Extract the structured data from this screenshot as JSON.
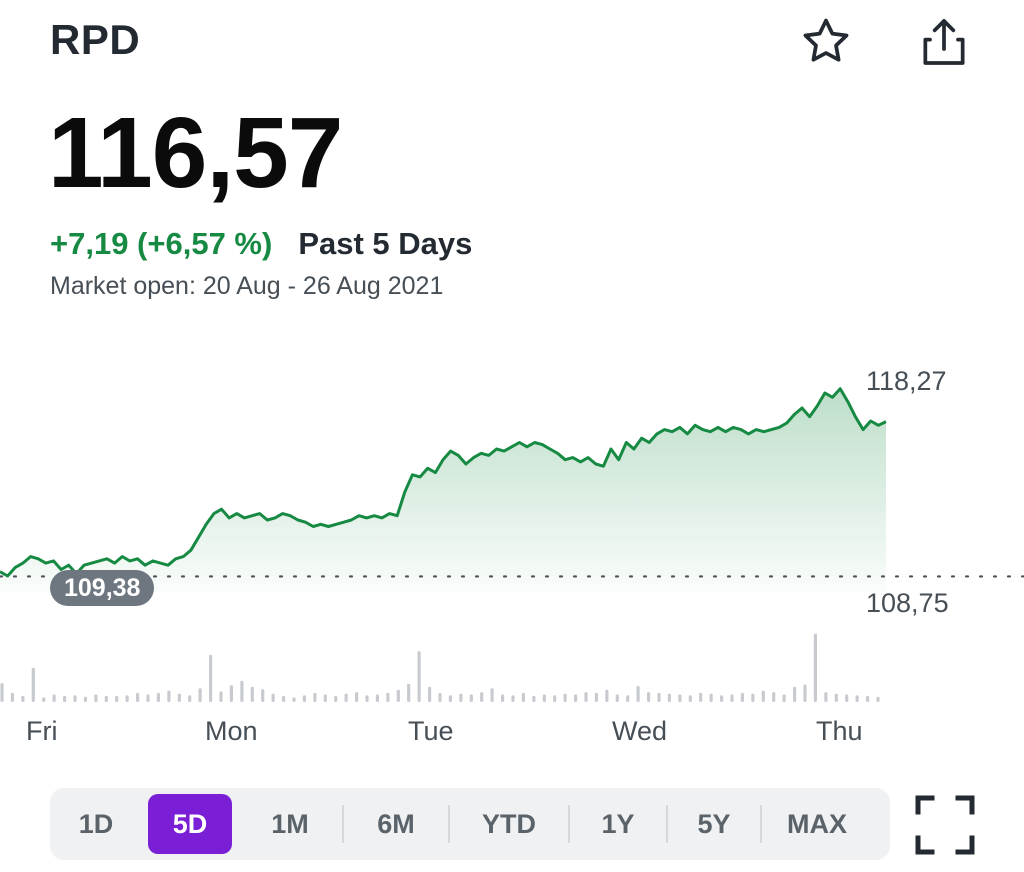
{
  "header": {
    "ticker": "RPD",
    "star_icon": "star-icon",
    "share_icon": "share-icon"
  },
  "quote": {
    "price": "116,57",
    "change": "+7,19 (+6,57 %)",
    "period": "Past 5 Days",
    "market_status": "Market open: 20 Aug - 26 Aug 2021"
  },
  "colors": {
    "accent_green": "#168a42",
    "line_green": "#168a42",
    "active_range": "#7b1fd6"
  },
  "chart_data": {
    "type": "area",
    "x_tick_labels": [
      "Fri",
      "Mon",
      "Tue",
      "Wed",
      "Thu"
    ],
    "high_label": "118,27",
    "low_label": "108,75",
    "previous_close_label": "109,38",
    "previous_close": 109.38,
    "ylim": [
      108.75,
      118.27
    ],
    "series": [
      {
        "values": [
          109.6,
          109.4,
          109.8,
          110.0,
          110.3,
          110.2,
          110.0,
          110.1,
          109.7,
          109.9,
          109.5,
          109.9,
          110.0,
          110.1,
          110.2,
          110.0,
          110.3,
          110.1,
          110.2,
          109.9,
          110.1,
          110.0,
          109.9,
          110.2,
          110.3,
          110.6,
          111.2,
          111.8,
          112.3,
          112.5,
          112.1,
          112.3,
          112.1,
          112.2,
          112.3,
          112.0,
          112.1,
          112.3,
          112.2,
          112.0,
          111.9,
          111.7,
          111.8,
          111.7,
          111.8,
          111.9,
          112.0,
          112.2,
          112.1,
          112.2,
          112.1,
          112.3,
          112.2,
          113.3,
          114.1,
          114.0,
          114.4,
          114.2,
          114.8,
          115.2,
          115.0,
          114.6,
          114.9,
          115.1,
          115.0,
          115.3,
          115.2,
          115.4,
          115.6,
          115.4,
          115.6,
          115.5,
          115.3,
          115.1,
          114.8,
          114.9,
          114.7,
          114.9,
          114.6,
          114.5,
          115.3,
          114.8,
          115.6,
          115.3,
          115.8,
          115.6,
          116.0,
          116.2,
          116.1,
          116.3,
          116.0,
          116.4,
          116.2,
          116.1,
          116.3,
          116.1,
          116.3,
          116.2,
          116.0,
          116.2,
          116.1,
          116.2,
          116.3,
          116.5,
          116.9,
          117.2,
          116.8,
          117.3,
          117.9,
          117.7,
          118.1,
          117.5,
          116.8,
          116.2,
          116.6,
          116.4,
          116.57
        ]
      }
    ],
    "volume": [
      0.25,
      0.12,
      0.08,
      0.45,
      0.06,
      0.1,
      0.08,
      0.09,
      0.07,
      0.1,
      0.08,
      0.08,
      0.09,
      0.12,
      0.1,
      0.12,
      0.15,
      0.11,
      0.09,
      0.18,
      0.62,
      0.14,
      0.22,
      0.28,
      0.2,
      0.17,
      0.11,
      0.08,
      0.06,
      0.09,
      0.12,
      0.1,
      0.08,
      0.11,
      0.13,
      0.09,
      0.1,
      0.12,
      0.16,
      0.24,
      0.67,
      0.2,
      0.12,
      0.09,
      0.11,
      0.1,
      0.13,
      0.18,
      0.1,
      0.09,
      0.12,
      0.08,
      0.1,
      0.09,
      0.11,
      0.1,
      0.13,
      0.12,
      0.16,
      0.1,
      0.09,
      0.21,
      0.13,
      0.12,
      0.11,
      0.1,
      0.09,
      0.12,
      0.11,
      0.09,
      0.1,
      0.12,
      0.11,
      0.15,
      0.13,
      0.1,
      0.2,
      0.23,
      0.9,
      0.13,
      0.11,
      0.1,
      0.09,
      0.08,
      0.07
    ]
  },
  "ranges": {
    "items": [
      "1D",
      "5D",
      "1M",
      "6M",
      "YTD",
      "1Y",
      "5Y",
      "MAX"
    ],
    "active": "5D"
  },
  "fullscreen_icon": "fullscreen-icon"
}
